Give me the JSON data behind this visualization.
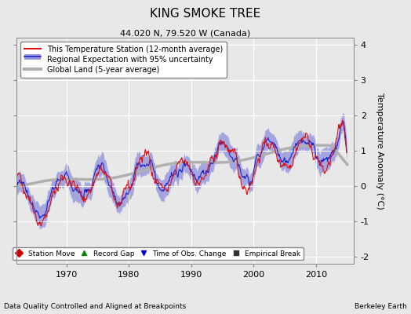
{
  "title": "KING SMOKE TREE",
  "subtitle": "44.020 N, 79.520 W (Canada)",
  "ylabel": "Temperature Anomaly (°C)",
  "xlabel_left": "Data Quality Controlled and Aligned at Breakpoints",
  "xlabel_right": "Berkeley Earth",
  "ylim": [
    -2.2,
    4.2
  ],
  "yticks": [
    -2,
    -1,
    0,
    1,
    2,
    3,
    4
  ],
  "xlim": [
    1962,
    2016
  ],
  "xticks": [
    1970,
    1980,
    1990,
    2000,
    2010
  ],
  "bg_color": "#e8e8e8",
  "plot_bg_color": "#e8e8e8",
  "grid_color": "#ffffff",
  "station_color": "#dd1111",
  "regional_color": "#2222cc",
  "uncertainty_color": "#9999dd",
  "global_color": "#b0b0b0",
  "legend_items": [
    {
      "label": "This Temperature Station (12-month average)",
      "color": "#dd1111",
      "lw": 1.5
    },
    {
      "label": "Regional Expectation with 95% uncertainty",
      "color": "#2222cc",
      "lw": 1.5
    },
    {
      "label": "Global Land (5-year average)",
      "color": "#b0b0b0",
      "lw": 3
    }
  ],
  "marker_items": [
    {
      "label": "Station Move",
      "color": "#cc0000",
      "marker": "D"
    },
    {
      "label": "Record Gap",
      "color": "#008800",
      "marker": "^"
    },
    {
      "label": "Time of Obs. Change",
      "color": "#0000cc",
      "marker": "v"
    },
    {
      "label": "Empirical Break",
      "color": "#333333",
      "marker": "s"
    }
  ]
}
